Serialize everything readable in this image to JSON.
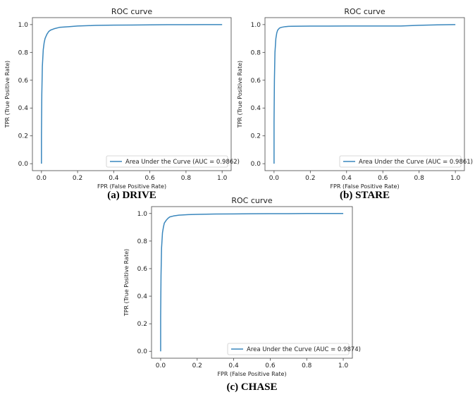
{
  "colors": {
    "curve": "#3a87bd",
    "axis": "#444444"
  },
  "chart_data": [
    {
      "type": "line",
      "title": "ROC curve",
      "xlabel": "FPR (False Positive Rate)",
      "ylabel": "TPR (True Positive Rate)",
      "caption": "(a) DRIVE",
      "xlim": [
        0,
        1
      ],
      "ylim": [
        0,
        1
      ],
      "x_ticks": [
        "0.0",
        "0.2",
        "0.4",
        "0.6",
        "0.8",
        "1.0"
      ],
      "y_ticks": [
        "0.0",
        "0.2",
        "0.4",
        "0.6",
        "0.8",
        "1.0"
      ],
      "grid": false,
      "legend_position": "lower-right",
      "series": [
        {
          "name": "Area Under the Curve (AUC = 0.9862)",
          "x": [
            0.0,
            0.0,
            0.002,
            0.005,
            0.01,
            0.015,
            0.02,
            0.03,
            0.04,
            0.05,
            0.07,
            0.1,
            0.15,
            0.2,
            0.3,
            0.4,
            0.5,
            0.6,
            0.7,
            0.8,
            0.9,
            1.0
          ],
          "y": [
            0.0,
            0.2,
            0.5,
            0.7,
            0.82,
            0.87,
            0.9,
            0.93,
            0.95,
            0.96,
            0.97,
            0.98,
            0.985,
            0.99,
            0.994,
            0.996,
            0.997,
            0.998,
            0.999,
            0.999,
            1.0,
            1.0
          ]
        }
      ]
    },
    {
      "type": "line",
      "title": "ROC curve",
      "xlabel": "FPR (False Positive Rate)",
      "ylabel": "TPR (True Positive Rate)",
      "caption": "(b) STARE",
      "xlim": [
        0,
        1
      ],
      "ylim": [
        0,
        1
      ],
      "x_ticks": [
        "0.0",
        "0.2",
        "0.4",
        "0.6",
        "0.8",
        "1.0"
      ],
      "y_ticks": [
        "0.0",
        "0.2",
        "0.4",
        "0.6",
        "0.8",
        "1.0"
      ],
      "grid": false,
      "legend_position": "lower-right",
      "series": [
        {
          "name": "Area Under the Curve (AUC = 0.9861)",
          "x": [
            0.0,
            0.0,
            0.002,
            0.005,
            0.01,
            0.015,
            0.02,
            0.03,
            0.04,
            0.06,
            0.08,
            0.1,
            0.2,
            0.3,
            0.4,
            0.5,
            0.6,
            0.7,
            0.8,
            0.9,
            1.0
          ],
          "y": [
            0.0,
            0.3,
            0.6,
            0.8,
            0.9,
            0.94,
            0.96,
            0.975,
            0.98,
            0.985,
            0.987,
            0.988,
            0.989,
            0.989,
            0.99,
            0.99,
            0.99,
            0.99,
            0.995,
            0.998,
            1.0
          ]
        }
      ]
    },
    {
      "type": "line",
      "title": "ROC curve",
      "xlabel": "FPR (False Positive Rate)",
      "ylabel": "TPR (True Positive Rate)",
      "caption": "(c) CHASE",
      "xlim": [
        0,
        1
      ],
      "ylim": [
        0,
        1
      ],
      "x_ticks": [
        "0.0",
        "0.2",
        "0.4",
        "0.6",
        "0.8",
        "1.0"
      ],
      "y_ticks": [
        "0.0",
        "0.2",
        "0.4",
        "0.6",
        "0.8",
        "1.0"
      ],
      "grid": false,
      "legend_position": "lower-right",
      "series": [
        {
          "name": "Area Under the Curve (AUC = 0.9874)",
          "x": [
            0.0,
            0.0,
            0.002,
            0.005,
            0.01,
            0.015,
            0.02,
            0.03,
            0.04,
            0.05,
            0.07,
            0.1,
            0.15,
            0.2,
            0.3,
            0.4,
            0.5,
            0.6,
            0.7,
            0.8,
            0.9,
            1.0
          ],
          "y": [
            0.0,
            0.25,
            0.55,
            0.75,
            0.86,
            0.9,
            0.93,
            0.95,
            0.965,
            0.975,
            0.982,
            0.988,
            0.992,
            0.994,
            0.996,
            0.997,
            0.998,
            0.999,
            0.999,
            1.0,
            1.0,
            1.0
          ]
        }
      ]
    }
  ]
}
